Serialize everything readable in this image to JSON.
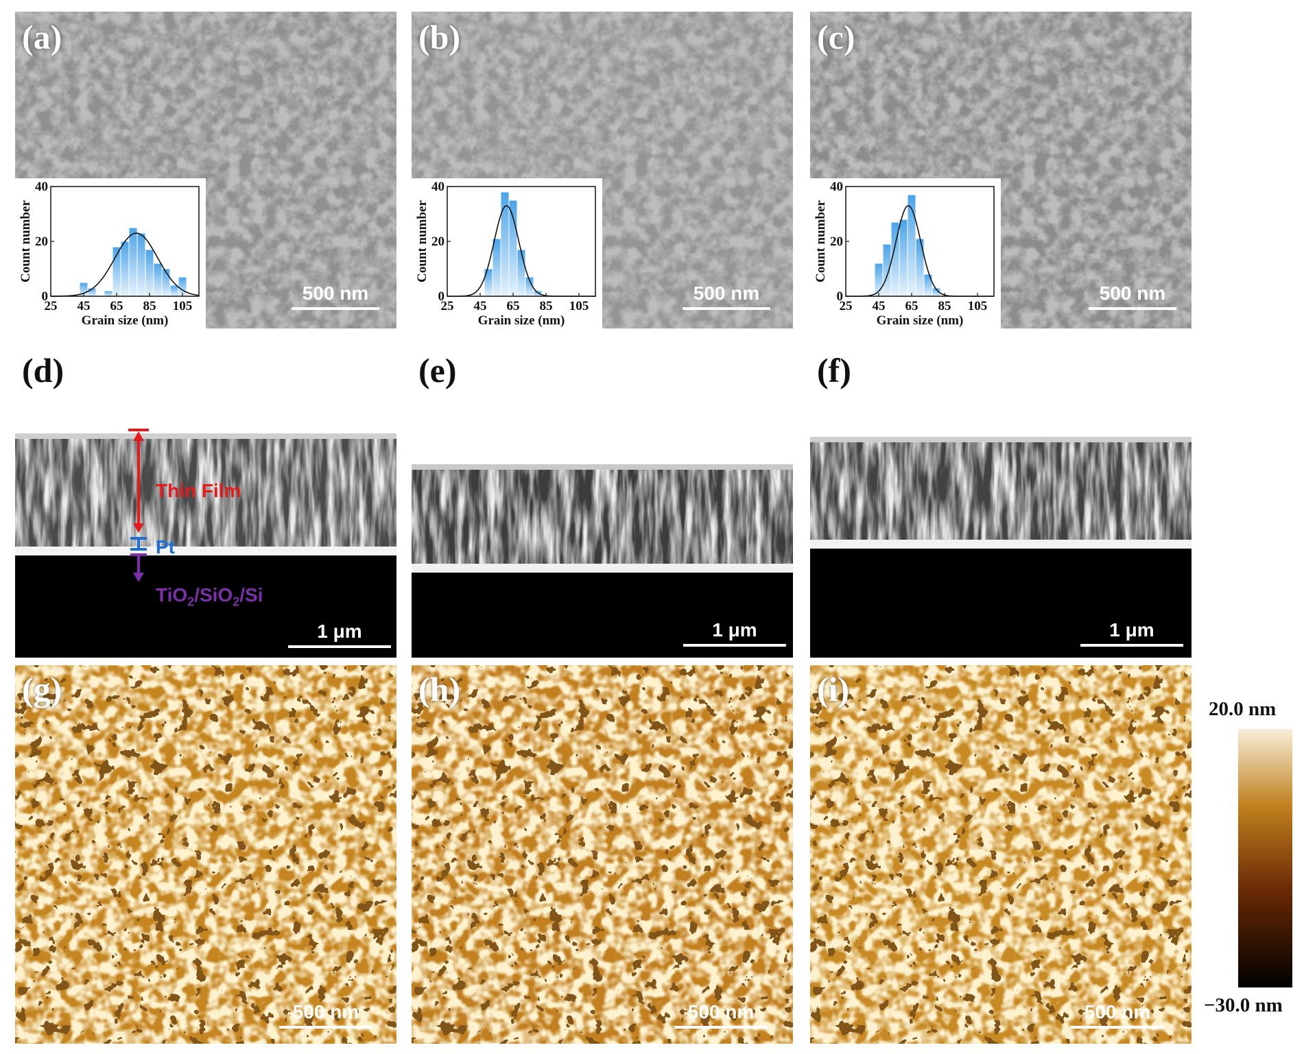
{
  "colors": {
    "thin_film": "#e41a1c",
    "pt": "#1f6fd1",
    "substrate": "#7b2fa8",
    "histogram_bar": "#4aa3e8",
    "afm_high": "#f7eed8",
    "afm_mid": "#c0801e",
    "afm_low": "#000000"
  },
  "panels": {
    "a": {
      "label": "(a)",
      "scale_bar": "500 nm"
    },
    "b": {
      "label": "(b)",
      "scale_bar": "500 nm"
    },
    "c": {
      "label": "(c)",
      "scale_bar": "500 nm"
    },
    "d": {
      "label": "(d)",
      "scale_bar": "1 μm"
    },
    "e": {
      "label": "(e)",
      "scale_bar": "1 μm"
    },
    "f": {
      "label": "(f)",
      "scale_bar": "1 μm"
    },
    "g": {
      "label": "(g)",
      "scale_bar": "500 nm"
    },
    "h": {
      "label": "(h)",
      "scale_bar": "500 nm"
    },
    "i": {
      "label": "(i)",
      "scale_bar": "500 nm"
    }
  },
  "layers": {
    "thin_film": "Thin Film",
    "pt": "Pt",
    "substrate_parts": [
      "TiO",
      "2",
      "/SiO",
      "2",
      "/Si"
    ]
  },
  "colorbar": {
    "max_label": "20.0 nm",
    "min_label": "−30.0 nm"
  },
  "chart_data": [
    {
      "type": "bar",
      "panel": "a",
      "xlabel": "Grain size (nm)",
      "ylabel": "Count number",
      "xlim": [
        25,
        115
      ],
      "ylim": [
        0,
        40
      ],
      "xticks": [
        "25",
        "45",
        "65",
        "85",
        "105"
      ],
      "yticks": [
        "0",
        "20",
        "40"
      ],
      "bin_centers": [
        45,
        50,
        55,
        60,
        65,
        70,
        75,
        80,
        85,
        90,
        95,
        100,
        105
      ],
      "values": [
        5,
        3,
        0,
        2,
        18,
        20,
        25,
        23,
        17,
        12,
        10,
        4,
        7
      ],
      "fit": {
        "type": "gaussian",
        "center": 77,
        "sigma": 13,
        "peak": 23
      }
    },
    {
      "type": "bar",
      "panel": "b",
      "xlabel": "Grain size (nm)",
      "ylabel": "Count number",
      "xlim": [
        25,
        115
      ],
      "ylim": [
        0,
        40
      ],
      "xticks": [
        "25",
        "45",
        "65",
        "85",
        "105"
      ],
      "yticks": [
        "0",
        "20",
        "40"
      ],
      "bin_centers": [
        50,
        55,
        60,
        65,
        70,
        75,
        80
      ],
      "values": [
        10,
        21,
        38,
        35,
        17,
        7,
        2
      ],
      "fit": {
        "type": "gaussian",
        "center": 61,
        "sigma": 7.5,
        "peak": 33
      }
    },
    {
      "type": "bar",
      "panel": "c",
      "xlabel": "Grain size (nm)",
      "ylabel": "Count number",
      "xlim": [
        25,
        115
      ],
      "ylim": [
        0,
        40
      ],
      "xticks": [
        "25",
        "45",
        "65",
        "85",
        "105"
      ],
      "yticks": [
        "0",
        "20",
        "40"
      ],
      "bin_centers": [
        45,
        50,
        55,
        60,
        65,
        70,
        75,
        80
      ],
      "values": [
        12,
        19,
        27,
        28,
        37,
        21,
        8,
        3
      ],
      "fit": {
        "type": "gaussian",
        "center": 63,
        "sigma": 7.5,
        "peak": 33
      }
    }
  ]
}
